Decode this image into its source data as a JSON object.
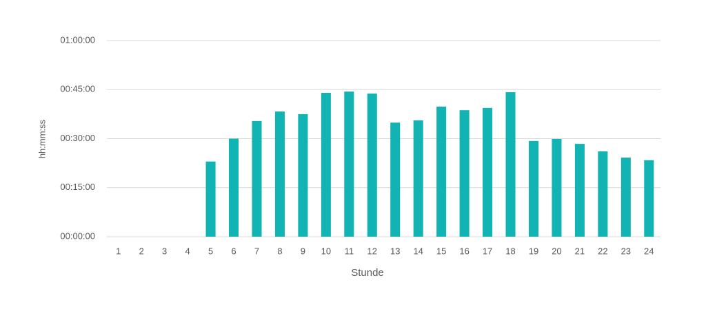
{
  "chart_data": {
    "type": "bar",
    "x_label": "Stunde",
    "y_label": "hh:mm:ss",
    "categories": [
      "1",
      "2",
      "3",
      "4",
      "5",
      "6",
      "7",
      "8",
      "9",
      "10",
      "11",
      "12",
      "13",
      "14",
      "15",
      "16",
      "17",
      "18",
      "19",
      "20",
      "21",
      "22",
      "23",
      "24"
    ],
    "values": [
      0,
      0,
      0,
      0,
      23,
      30,
      35.4,
      38.3,
      37.5,
      44,
      44.4,
      43.8,
      34.9,
      35.6,
      39.8,
      38.7,
      39.4,
      44.2,
      29.3,
      29.9,
      28.4,
      26.1,
      24.2,
      23.4
    ],
    "color": "#12b3b3",
    "ylim": [
      0,
      60
    ],
    "yticks": [
      {
        "value": 0,
        "label": "00:00:00"
      },
      {
        "value": 15,
        "label": "00:15:00"
      },
      {
        "value": 30,
        "label": "00:30:00"
      },
      {
        "value": 45,
        "label": "00:45:00"
      },
      {
        "value": 60,
        "label": "01:00:00"
      }
    ],
    "grid": true
  }
}
